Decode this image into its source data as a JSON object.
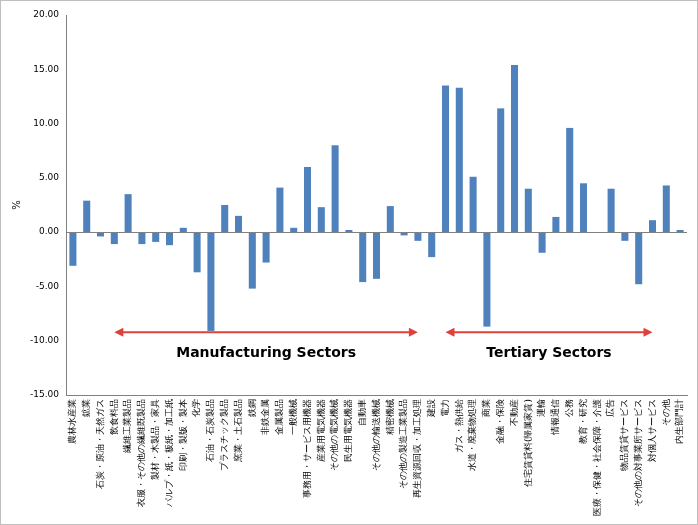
{
  "chart_data": {
    "type": "bar",
    "y_label": "%",
    "categories": [
      "農林水産業",
      "鉱業",
      "石炭・原油・天然ガス",
      "飲食料品",
      "繊維工業製品",
      "衣服・その他の繊維既製品",
      "製材・木製品・家具",
      "パルプ・紙・板紙・加工紙",
      "印刷・製版・製本",
      "化学",
      "石油・石炭製品",
      "プラスチック製品",
      "窯業・土石製品",
      "鉄鋼",
      "非鉄金属",
      "金属製品",
      "一般機械",
      "事務用・サービス用機器",
      "産業用電気機器",
      "その他の電気機械",
      "民生用電気機器",
      "自動車",
      "その他の輸送機械",
      "精密機械",
      "その他の製造工業製品",
      "再生資源回収・加工処理",
      "建設",
      "電力",
      "ガス・熱供給",
      "水道・廃棄物処理",
      "商業",
      "金融・保険",
      "不動産",
      "住宅賃貸料(帰属家賃)",
      "運輸",
      "情報通信",
      "公務",
      "教育・研究",
      "医療・保健・社会保障・介護",
      "広告",
      "物品賃貸サービス",
      "その他の対事業所サービス",
      "対個人サービス",
      "その他",
      "内生部門計"
    ],
    "values": [
      -3.1,
      2.9,
      -0.4,
      -1.1,
      3.5,
      -1.1,
      -0.9,
      -1.2,
      0.4,
      -3.7,
      -9.1,
      2.5,
      1.5,
      -5.2,
      -2.8,
      4.1,
      0.4,
      6.0,
      2.3,
      8.0,
      0.2,
      -4.6,
      -4.3,
      2.4,
      -0.3,
      -0.8,
      -2.3,
      13.5,
      13.3,
      5.1,
      -8.7,
      11.4,
      15.4,
      4.0,
      -1.9,
      1.4,
      9.6,
      4.5,
      0.0,
      4.0,
      -0.8,
      -4.8,
      1.1,
      4.3,
      0.2
    ],
    "color": "#4F81BD",
    "ylim": [
      -15,
      20
    ],
    "yticks": [
      {
        "value": -15,
        "label": "-15.00"
      },
      {
        "value": -10,
        "label": "-10.00"
      },
      {
        "value": -5,
        "label": "-5.00"
      },
      {
        "value": 0,
        "label": "0.00"
      },
      {
        "value": 5,
        "label": "5.00"
      },
      {
        "value": 10,
        "label": "10.00"
      },
      {
        "value": 15,
        "label": "15.00"
      },
      {
        "value": 20,
        "label": "20.00"
      }
    ],
    "grid": false,
    "annotations": [
      {
        "text": "Manufacturing Sectors",
        "from": "飲食料品",
        "to": "再生資源回収・加工処理"
      },
      {
        "text": "Tertiary Sectors",
        "from": "電力",
        "to": "対個人サービス"
      }
    ]
  }
}
